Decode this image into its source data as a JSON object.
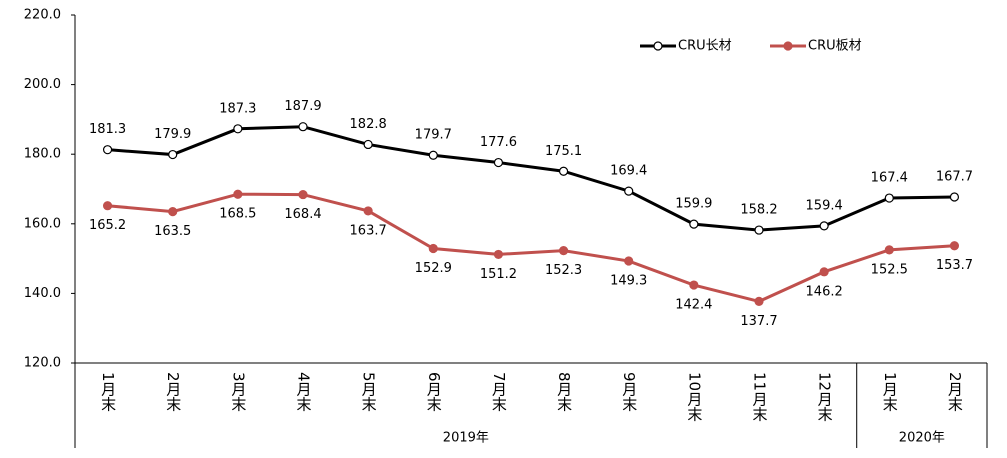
{
  "chart_data": {
    "type": "line",
    "groups": [
      {
        "name": "2019年",
        "categories": [
          "1月末",
          "2月末",
          "3月末",
          "4月末",
          "5月末",
          "6月末",
          "7月末",
          "8月末",
          "9月末",
          "10月末",
          "11月末",
          "12月末"
        ]
      },
      {
        "name": "2020年",
        "categories": [
          "1月末",
          "2月末"
        ]
      }
    ],
    "series": [
      {
        "name": "CRU长材",
        "color": "#000000",
        "marker_fill": "#ffffff",
        "label_position": "above",
        "values": [
          181.3,
          179.9,
          187.3,
          187.9,
          182.8,
          179.7,
          177.6,
          175.1,
          169.4,
          159.9,
          158.2,
          159.4,
          167.4,
          167.7
        ]
      },
      {
        "name": "CRU板材",
        "color": "#c0504d",
        "marker_fill": "#c0504d",
        "label_position": "below",
        "values": [
          165.2,
          163.5,
          168.5,
          168.4,
          163.7,
          152.9,
          151.2,
          152.3,
          149.3,
          142.4,
          137.7,
          146.2,
          152.5,
          153.7
        ]
      }
    ],
    "ylim": [
      120,
      220
    ],
    "yticks": [
      {
        "value": 120,
        "label": "120.0"
      },
      {
        "value": 140,
        "label": "140.0"
      },
      {
        "value": 160,
        "label": "160.0"
      },
      {
        "value": 180,
        "label": "180.0"
      },
      {
        "value": 200,
        "label": "200.0"
      },
      {
        "value": 220,
        "label": "220.0"
      }
    ],
    "grid": false,
    "legend": "top-right"
  }
}
